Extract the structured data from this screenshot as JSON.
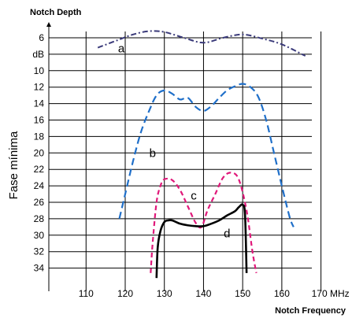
{
  "chart_data": {
    "type": "line",
    "title": "Notch Depth",
    "xlabel": "Notch Frequency",
    "ylabel": "Fase mínima",
    "x_unit": "MHz",
    "y_unit": "dB",
    "xlim": [
      100,
      180
    ],
    "ylim": [
      2,
      36
    ],
    "y_inverted": true,
    "grid": true,
    "x_ticks": [
      {
        "v": 110,
        "label": "110"
      },
      {
        "v": 120,
        "label": "120"
      },
      {
        "v": 130,
        "label": "130"
      },
      {
        "v": 140,
        "label": "140"
      },
      {
        "v": 150,
        "label": "150"
      },
      {
        "v": 160,
        "label": "160"
      },
      {
        "v": 170,
        "label": "170 MHz"
      }
    ],
    "y_ticks": [
      {
        "v": 6,
        "label": "6"
      },
      {
        "v": 8,
        "label": "dB"
      },
      {
        "v": 10,
        "label": "10"
      },
      {
        "v": 12,
        "label": "12"
      },
      {
        "v": 14,
        "label": "14"
      },
      {
        "v": 16,
        "label": "16"
      },
      {
        "v": 18,
        "label": "18"
      },
      {
        "v": 20,
        "label": "20"
      },
      {
        "v": 22,
        "label": "22"
      },
      {
        "v": 24,
        "label": "24"
      },
      {
        "v": 26,
        "label": "26"
      },
      {
        "v": 28,
        "label": "28"
      },
      {
        "v": 30,
        "label": "30"
      },
      {
        "v": 32,
        "label": "32"
      },
      {
        "v": 34,
        "label": "34"
      }
    ],
    "series": [
      {
        "name": "a",
        "color": "#3a3a7a",
        "dash": "dashdot",
        "label_at": [
          119,
          7.3
        ],
        "x": [
          113,
          118,
          122,
          126,
          130,
          135,
          140,
          145,
          150,
          155,
          160,
          166
        ],
        "y": [
          7.2,
          6.3,
          5.6,
          5.2,
          5.3,
          6.0,
          6.6,
          6.0,
          5.6,
          6.1,
          6.8,
          8.2
        ]
      },
      {
        "name": "b",
        "color": "#1f6fc9",
        "dash": "dash",
        "label_at": [
          127,
          20
        ],
        "x": [
          118.5,
          120,
          122,
          124,
          126,
          128,
          130,
          132,
          134,
          136,
          138,
          140,
          142,
          144,
          146,
          148,
          150,
          152,
          154,
          156,
          158,
          160,
          162,
          163
        ],
        "y": [
          28,
          25,
          21,
          17.5,
          15,
          13,
          12.4,
          12.8,
          13.5,
          13.3,
          14.4,
          14.9,
          14.3,
          13.3,
          12.4,
          11.9,
          11.6,
          12,
          13.2,
          16,
          20,
          24,
          27.8,
          29
        ]
      },
      {
        "name": "c",
        "color": "#e0197a",
        "dash": "shortdash",
        "label_at": [
          137.5,
          25.2
        ],
        "x": [
          126.5,
          127,
          128,
          129,
          130,
          132,
          134,
          136,
          138,
          139.5,
          141,
          143,
          145,
          147,
          149,
          151,
          152.5,
          153.5
        ],
        "y": [
          34.6,
          31,
          26,
          24,
          23.2,
          23.3,
          24.5,
          26.5,
          28.5,
          29,
          27,
          25,
          23,
          22.4,
          23.2,
          27,
          32,
          34.6
        ]
      },
      {
        "name": "d",
        "color": "#000000",
        "dash": "solid",
        "label_at": [
          146,
          29.8
        ],
        "x": [
          128,
          128.3,
          129,
          130,
          131,
          132,
          134,
          136,
          138,
          140,
          142,
          144,
          146,
          148,
          149,
          150,
          150.6,
          151
        ],
        "y": [
          35.2,
          31.5,
          29.5,
          28.4,
          28.2,
          28.2,
          28.6,
          28.8,
          28.9,
          28.9,
          28.6,
          28.2,
          27.6,
          27.1,
          26.6,
          26.3,
          27.5,
          34.6
        ]
      }
    ]
  }
}
